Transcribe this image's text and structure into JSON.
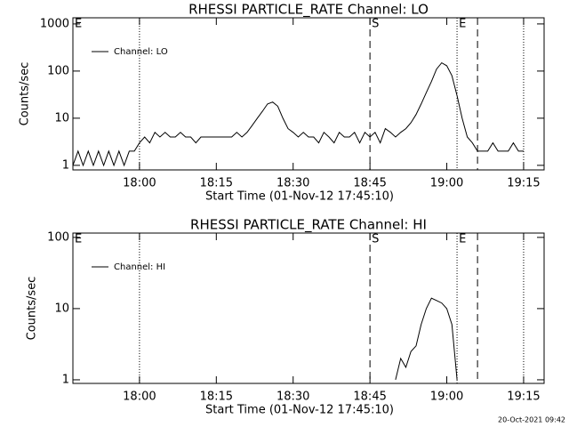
{
  "chart_data": [
    {
      "type": "line",
      "title": "RHESSI PARTICLE_RATE Channel: LO",
      "xlabel": "Start Time (01-Nov-12 17:45:10)",
      "ylabel": "Counts/sec",
      "log_y": true,
      "legend": "upper left",
      "color": "#000000",
      "xlim": [
        "17:47",
        "19:19"
      ],
      "xticks": [
        "18:00",
        "18:15",
        "18:30",
        "18:45",
        "19:00",
        "19:15"
      ],
      "ylim": [
        0.8,
        1350
      ],
      "yticks": [
        1,
        10,
        100,
        1000
      ],
      "annotations": [
        {
          "text": "E",
          "x": "17:47"
        },
        {
          "text": "S",
          "x": "18:45"
        },
        {
          "text": "E",
          "x": "19:02"
        }
      ],
      "vlines": [
        {
          "x": "18:00",
          "style": "dotted"
        },
        {
          "x": "18:45",
          "style": "dashed"
        },
        {
          "x": "19:02",
          "style": "dotted"
        },
        {
          "x": "19:06",
          "style": "dashed"
        },
        {
          "x": "19:15",
          "style": "dotted"
        }
      ],
      "series": [
        {
          "name": "Channel: LO",
          "color": "#000000",
          "x": [
            "17:47",
            "17:48",
            "17:49",
            "17:50",
            "17:51",
            "17:52",
            "17:53",
            "17:54",
            "17:55",
            "17:56",
            "17:57",
            "17:58",
            "17:59",
            "18:00",
            "18:01",
            "18:02",
            "18:03",
            "18:04",
            "18:05",
            "18:06",
            "18:07",
            "18:08",
            "18:09",
            "18:10",
            "18:11",
            "18:12",
            "18:13",
            "18:14",
            "18:15",
            "18:16",
            "18:17",
            "18:18",
            "18:19",
            "18:20",
            "18:21",
            "18:22",
            "18:23",
            "18:24",
            "18:25",
            "18:26",
            "18:27",
            "18:28",
            "18:29",
            "18:30",
            "18:31",
            "18:32",
            "18:33",
            "18:34",
            "18:35",
            "18:36",
            "18:37",
            "18:38",
            "18:39",
            "18:40",
            "18:41",
            "18:42",
            "18:43",
            "18:44",
            "18:45",
            "18:46",
            "18:47",
            "18:48",
            "18:49",
            "18:50",
            "18:51",
            "18:52",
            "18:53",
            "18:54",
            "18:55",
            "18:56",
            "18:57",
            "18:58",
            "18:59",
            "19:00",
            "19:01",
            "19:02",
            "19:03",
            "19:04",
            "19:05",
            "19:06",
            "19:07",
            "19:08",
            "19:09",
            "19:10",
            "19:11",
            "19:12",
            "19:13",
            "19:14",
            "19:15"
          ],
          "values": [
            1,
            2,
            1,
            2,
            1,
            2,
            1,
            2,
            1,
            2,
            1,
            2,
            2,
            3,
            4,
            3,
            5,
            4,
            5,
            4,
            4,
            5,
            4,
            4,
            3,
            4,
            4,
            4,
            4,
            4,
            4,
            4,
            5,
            4,
            5,
            7,
            10,
            14,
            20,
            22,
            18,
            10,
            6,
            5,
            4,
            5,
            4,
            4,
            3,
            5,
            4,
            3,
            5,
            4,
            4,
            5,
            3,
            5,
            4,
            5,
            3,
            6,
            5,
            4,
            5,
            6,
            8,
            12,
            20,
            35,
            60,
            110,
            150,
            130,
            80,
            30,
            10,
            4,
            3,
            2,
            2,
            2,
            3,
            2,
            2,
            2,
            3,
            2,
            2
          ]
        }
      ]
    },
    {
      "type": "line",
      "title": "RHESSI PARTICLE_RATE Channel: HI",
      "xlabel": "Start Time (01-Nov-12 17:45:10)",
      "ylabel": "Counts/sec",
      "log_y": true,
      "legend": "upper left",
      "color": "#000000",
      "xlim": [
        "17:47",
        "19:19"
      ],
      "xticks": [
        "18:00",
        "18:15",
        "18:30",
        "18:45",
        "19:00",
        "19:15"
      ],
      "ylim": [
        0.89,
        115
      ],
      "yticks": [
        1,
        10,
        100
      ],
      "annotations": [
        {
          "text": "E",
          "x": "17:47"
        },
        {
          "text": "S",
          "x": "18:45"
        },
        {
          "text": "E",
          "x": "19:02"
        }
      ],
      "vlines": [
        {
          "x": "18:00",
          "style": "dotted"
        },
        {
          "x": "18:45",
          "style": "dashed"
        },
        {
          "x": "19:02",
          "style": "dotted"
        },
        {
          "x": "19:06",
          "style": "dashed"
        },
        {
          "x": "19:15",
          "style": "dotted"
        }
      ],
      "series": [
        {
          "name": "Channel: HI",
          "color": "#000000",
          "x": [
            "18:50",
            "18:51",
            "18:52",
            "18:53",
            "18:54",
            "18:55",
            "18:56",
            "18:57",
            "18:58",
            "18:59",
            "19:00",
            "19:01",
            "19:02"
          ],
          "values": [
            1,
            2,
            1.5,
            2.5,
            3,
            6,
            10,
            14,
            13,
            12,
            10,
            6,
            1
          ]
        }
      ]
    }
  ],
  "footer": "20-Oct-2021 09:42"
}
